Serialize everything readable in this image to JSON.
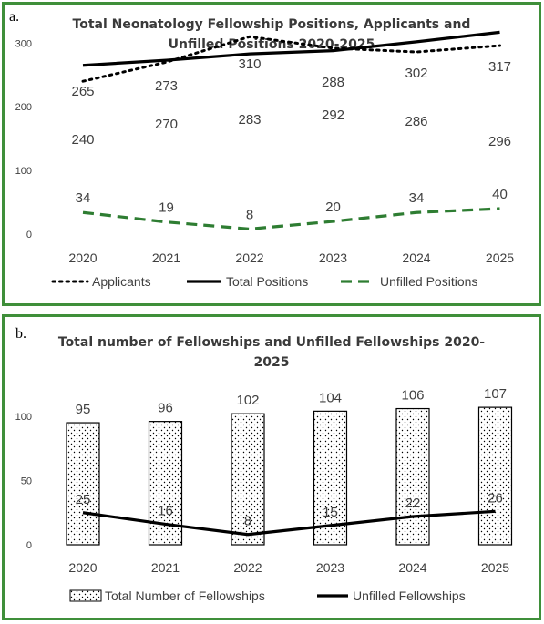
{
  "chart_data": [
    {
      "id": "a",
      "panel_label": "a.",
      "type": "line",
      "title_line1": "Total Neonatology Fellowship Positions, Applicants and",
      "title_line2": "Unfilled Positions 2020-2025",
      "categories": [
        "2020",
        "2021",
        "2022",
        "2023",
        "2024",
        "2025"
      ],
      "ylim": [
        0,
        340
      ],
      "yticks": [
        0,
        100,
        200,
        300
      ],
      "grid": false,
      "legend_position": "bottom",
      "series": [
        {
          "name": "Applicants",
          "values": [
            240,
            270,
            310,
            292,
            286,
            296
          ],
          "style": "dotted",
          "color": "#000000"
        },
        {
          "name": "Total Positions",
          "values": [
            265,
            273,
            283,
            288,
            302,
            317
          ],
          "style": "solid",
          "color": "#000000"
        },
        {
          "name": "Unfilled Positions",
          "values": [
            34,
            19,
            8,
            20,
            34,
            40
          ],
          "style": "dashed",
          "color": "#2e7d32"
        }
      ]
    },
    {
      "id": "b",
      "panel_label": "b.",
      "type": "bar",
      "title_line1": "Total number of Fellowships and Unfilled Fellowships 2020-",
      "title_line2": "2025",
      "categories": [
        "2020",
        "2021",
        "2022",
        "2023",
        "2024",
        "2025"
      ],
      "ylim": [
        0,
        120
      ],
      "yticks": [
        0,
        50,
        100
      ],
      "grid": false,
      "legend_position": "bottom",
      "series": [
        {
          "name": "Total Number of Fellowships",
          "values": [
            95,
            96,
            102,
            104,
            106,
            107
          ],
          "style": "bar-dotted-pattern",
          "color": "#000000"
        },
        {
          "name": "Unfilled Fellowships",
          "values": [
            25,
            16,
            8,
            15,
            22,
            26
          ],
          "style": "solid",
          "color": "#000000"
        }
      ]
    }
  ]
}
